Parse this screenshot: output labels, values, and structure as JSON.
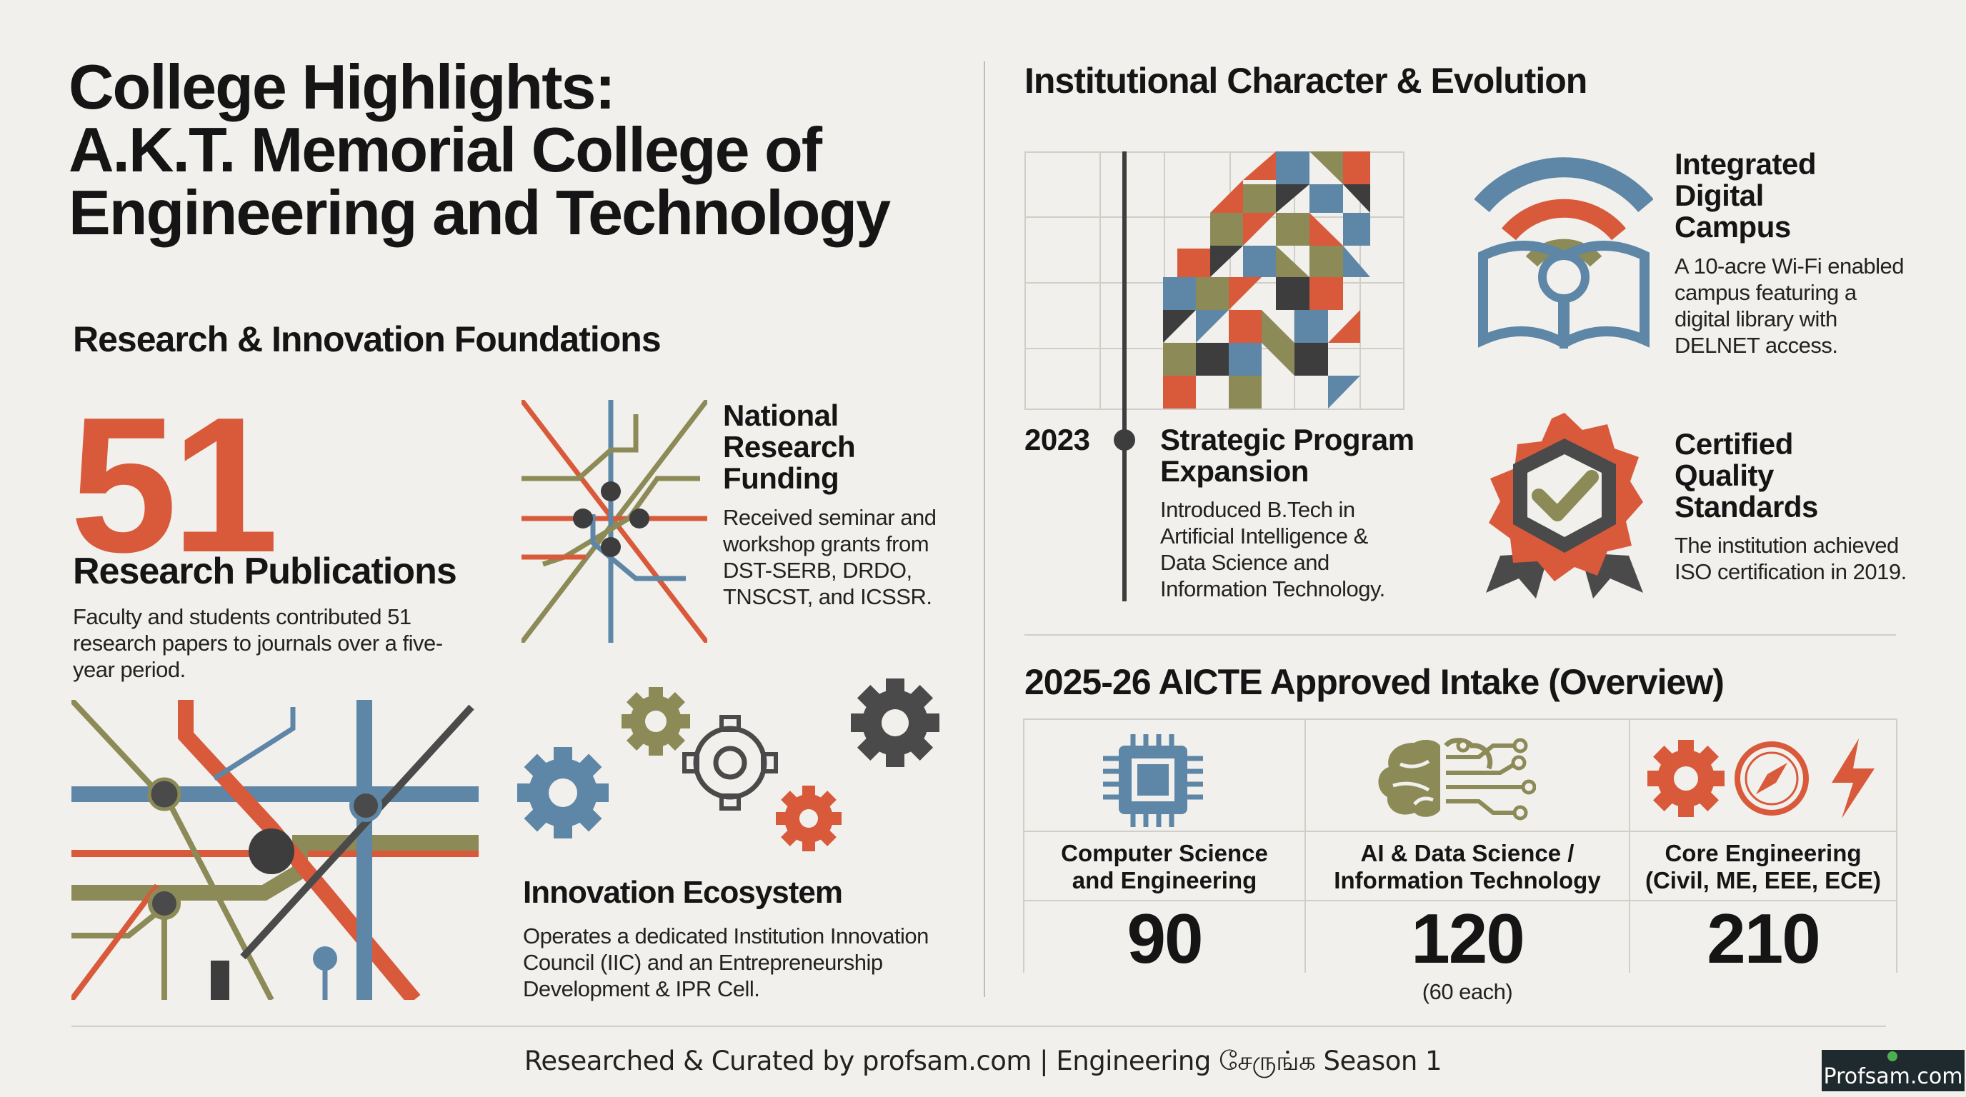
{
  "title": {
    "line1": "College Highlights:",
    "line2": "A.K.T. Memorial College of",
    "line3": "Engineering and Technology"
  },
  "research": {
    "heading": "Research & Innovation Foundations",
    "publications": {
      "number": "51",
      "label": "Research Publications",
      "desc": "Faculty and students contributed 51 research papers to journals over a five-year period."
    },
    "funding": {
      "title_l1": "National",
      "title_l2": "Research",
      "title_l3": "Funding",
      "desc": "Received seminar and workshop grants from DST-SERB, DRDO, TNSCST, and ICSSR."
    },
    "innovation": {
      "title": "Innovation Ecosystem",
      "desc": "Operates a dedicated Institution Innovation Council (IIC) and an Entrepreneurship Development & IPR Cell."
    }
  },
  "institution": {
    "heading": "Institutional Character & Evolution",
    "year": "2023",
    "expansion": {
      "title_l1": "Strategic Program",
      "title_l2": "Expansion",
      "desc": "Introduced B.Tech in Artificial Intelligence & Data Science and Information Technology."
    },
    "campus": {
      "title_l1": "Integrated",
      "title_l2": "Digital",
      "title_l3": "Campus",
      "desc": "A 10-acre Wi-Fi enabled campus featuring a digital library with DELNET access."
    },
    "quality": {
      "title_l1": "Certified",
      "title_l2": "Quality",
      "title_l3": "Standards",
      "desc": "The institution achieved ISO certification in 2019."
    }
  },
  "intake": {
    "heading": "2025-26 AICTE Approved Intake (Overview)",
    "columns": [
      {
        "name_l1": "Computer Science",
        "name_l2": "and Engineering",
        "value": "90",
        "note": "",
        "icon": "chip-icon"
      },
      {
        "name_l1": "AI & Data Science /",
        "name_l2": "Information Technology",
        "value": "120",
        "note": "(60 each)",
        "icon": "brain-circuit-icon"
      },
      {
        "name_l1": "Core Engineering",
        "name_l2": "(Civil, ME, EEE, ECE)",
        "value": "210",
        "note": "",
        "icon": "gear-compass-bolt-icon"
      }
    ]
  },
  "footer": {
    "credit": "Researched & Curated by profsam.com | Engineering சேருங்க Season 1",
    "logo": "Profsam.com"
  },
  "colors": {
    "orange": "#d9593b",
    "olive": "#8c8b57",
    "blue": "#5e86a6",
    "charcoal": "#454545",
    "background": "#f1f0ec"
  }
}
